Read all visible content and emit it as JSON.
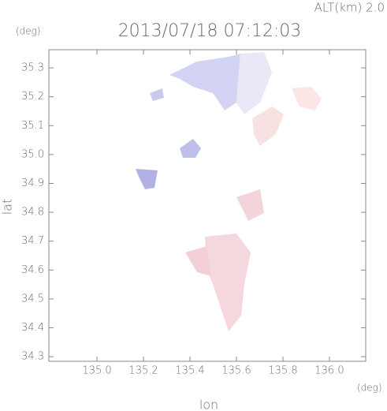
{
  "chart_data": {
    "type": "heatmap",
    "title": "2013/07/18 07:12:03",
    "altitude_label": "ALT(km) 2.0",
    "x_label": "lon",
    "y_label": "lat",
    "x_unit": "(deg)",
    "y_unit": "(deg)",
    "xlim": [
      134.793,
      136.156
    ],
    "ylim": [
      34.284,
      35.363
    ],
    "xticks": [
      {
        "value": 135,
        "label": "135.0"
      },
      135.2,
      135.4,
      135.6,
      135.8,
      {
        "value": 136,
        "label": "136.0"
      }
    ],
    "yticks": [
      34.3,
      34.4,
      34.5,
      34.6,
      34.7,
      34.8,
      34.9,
      {
        "value": 35,
        "label": "35.0"
      },
      35.1,
      35.2,
      35.3
    ],
    "frame_color": "#888888"
  }
}
